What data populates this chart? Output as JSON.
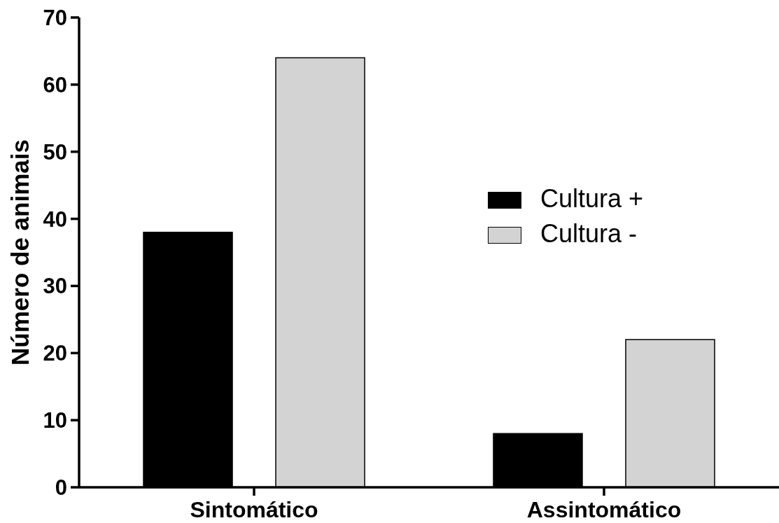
{
  "chart_data": {
    "type": "bar",
    "ylabel": "Número de animais",
    "categories": [
      "Sintomático",
      "Assintomático"
    ],
    "series": [
      {
        "name": "Cultura +",
        "color": "#000000",
        "values": [
          38,
          8
        ]
      },
      {
        "name": "Cultura -",
        "color": "#d3d3d3",
        "values": [
          64,
          22
        ]
      }
    ],
    "ylim": [
      0,
      70
    ],
    "yticks": [
      0,
      10,
      20,
      30,
      40,
      50,
      60,
      70
    ],
    "legend": "right"
  }
}
